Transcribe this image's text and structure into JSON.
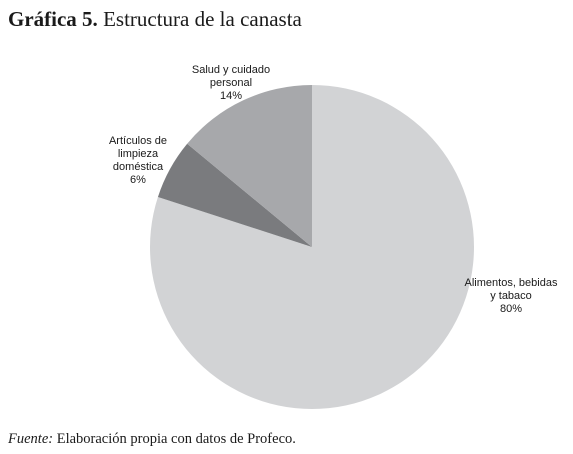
{
  "title": {
    "prefix": "Gráfica 5.",
    "text": "Estructura de la canasta"
  },
  "chart_data": {
    "type": "pie",
    "slices": [
      {
        "name": "Alimentos, bebidas y tabaco",
        "label_lines": [
          "Alimentos, bebidas",
          "y tabaco",
          "80%"
        ],
        "value": 80,
        "color": "#d2d3d5"
      },
      {
        "name": "Artículos de limpieza doméstica",
        "label_lines": [
          "Artículos de",
          "limpieza",
          "doméstica",
          "6%"
        ],
        "value": 6,
        "color": "#7a7b7e"
      },
      {
        "name": "Salud y cuidado personal",
        "label_lines": [
          "Salud y cuidado",
          "personal",
          "14%"
        ],
        "value": 14,
        "color": "#a7a8ab"
      }
    ],
    "start_angle_deg": 0,
    "direction": "clockwise",
    "legend": "none"
  },
  "source": {
    "label": "Fuente:",
    "text": "Elaboración propia con datos de Profeco."
  }
}
